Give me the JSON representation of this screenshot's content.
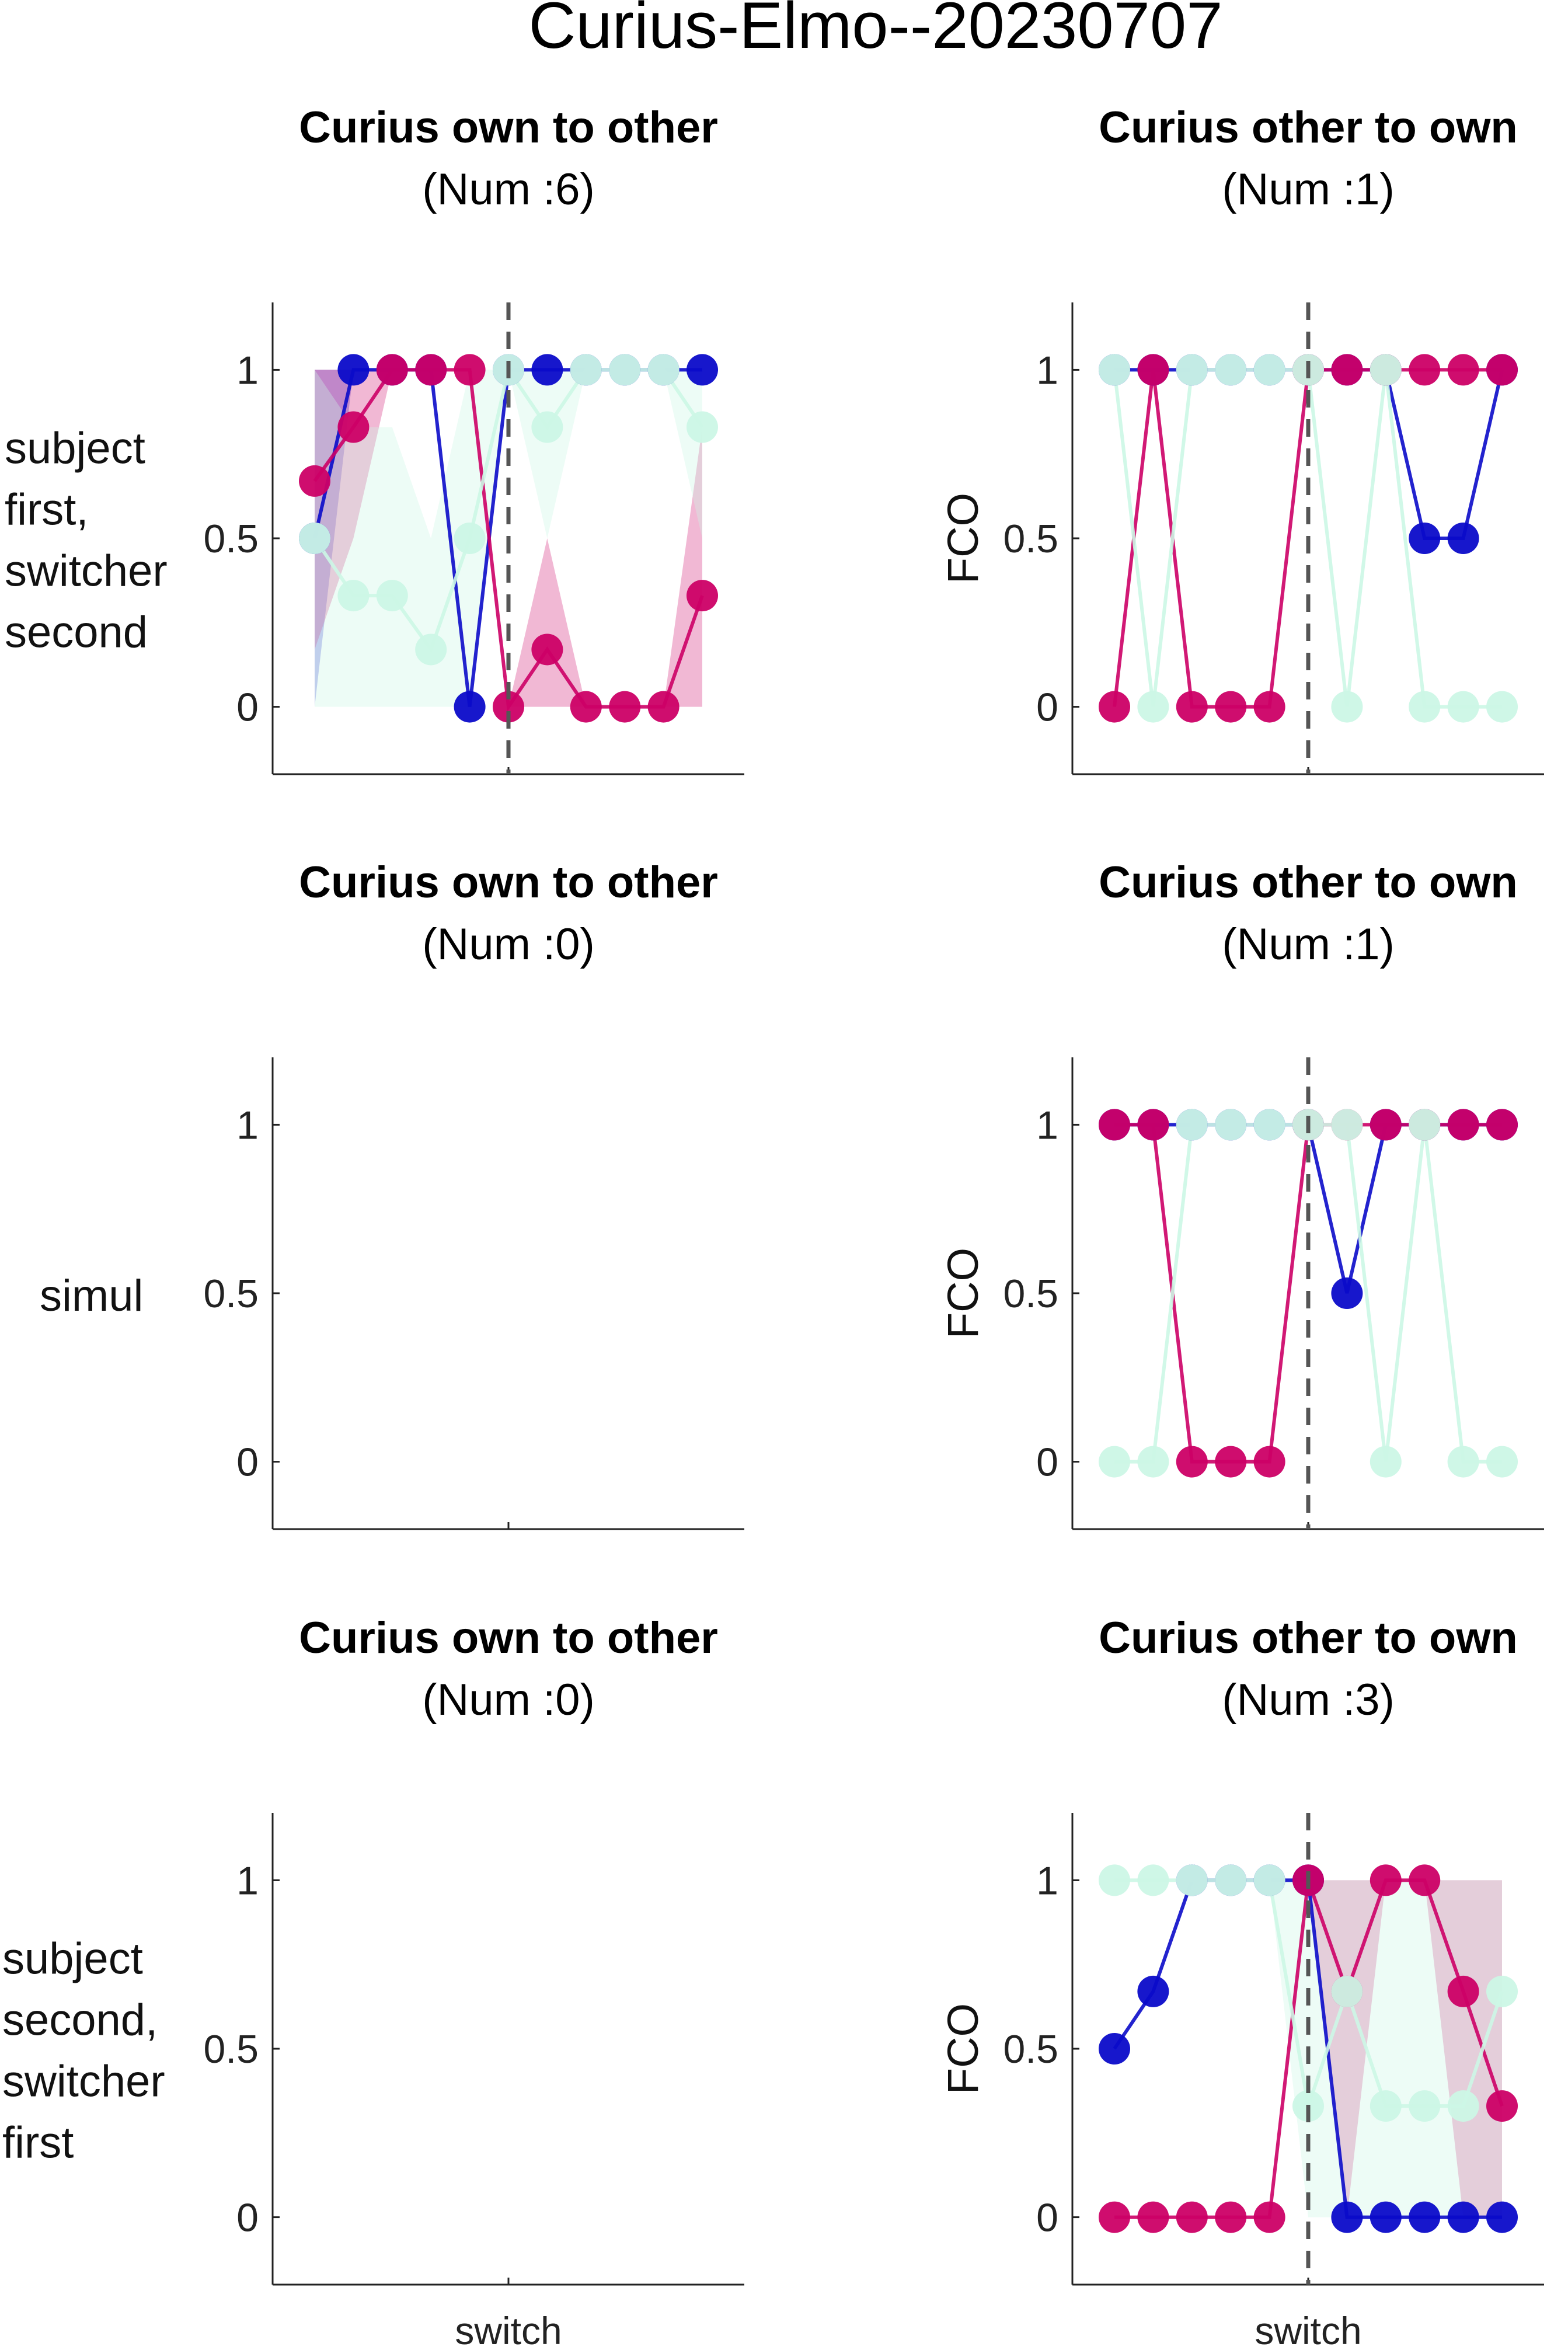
{
  "figure_title": "Curius-Elmo--20230707",
  "row_labels": [
    [
      "subject",
      "first,",
      "switcher",
      "second"
    ],
    [
      "simul"
    ],
    [
      "subject",
      "second,",
      "switcher",
      "first"
    ]
  ],
  "colors": {
    "blue": "#0b0bc9",
    "magenta": "#cc0066",
    "mint": "#ccf7e6",
    "dashed": "#555555",
    "axis": "#222222"
  },
  "chart_data": [
    {
      "type": "line",
      "title": "Curius own to other",
      "subtitle": "(Num :6)",
      "ylabel": "",
      "xlabel": "",
      "x_tick_label": "switch",
      "yticks": [
        "0",
        "0.5",
        "1"
      ],
      "ylim": [
        -0.2,
        1.2
      ],
      "x": [
        -5,
        -4,
        -3,
        -2,
        -1,
        0,
        1,
        2,
        3,
        4,
        5
      ],
      "switch_at": 0,
      "series": [
        {
          "color": "blue",
          "values": [
            0.5,
            1,
            1,
            1,
            0,
            1,
            1,
            1,
            1,
            1,
            1
          ],
          "band_low": [
            0,
            1,
            1,
            1,
            0,
            1,
            1,
            1,
            1,
            1,
            1
          ],
          "band_high": [
            1,
            1,
            1,
            1,
            0,
            1,
            1,
            1,
            1,
            1,
            1
          ]
        },
        {
          "color": "magenta",
          "values": [
            0.67,
            0.83,
            1,
            1,
            1,
            0,
            0.17,
            0,
            0,
            0,
            0.33
          ],
          "band_low": [
            0.17,
            0.5,
            1,
            1,
            1,
            0,
            0,
            0,
            0,
            0,
            0
          ],
          "band_high": [
            1,
            1,
            1,
            1,
            1,
            0,
            0.5,
            0,
            0,
            0,
            0.83
          ]
        },
        {
          "color": "mint",
          "values": [
            0.5,
            0.33,
            0.33,
            0.17,
            0.5,
            1,
            0.83,
            1,
            1,
            1,
            0.83
          ],
          "band_low": [
            0,
            0,
            0,
            0,
            0,
            1,
            0.5,
            1,
            1,
            1,
            0.5
          ],
          "band_high": [
            1,
            0.83,
            0.83,
            0.5,
            1,
            1,
            1,
            1,
            1,
            1,
            1
          ]
        }
      ]
    },
    {
      "type": "line",
      "title": "Curius other to own",
      "subtitle": "(Num :1)",
      "ylabel": "FCO",
      "xlabel": "",
      "x_tick_label": "switch",
      "yticks": [
        "0",
        "0.5",
        "1"
      ],
      "ylim": [
        -0.2,
        1.2
      ],
      "x": [
        -5,
        -4,
        -3,
        -2,
        -1,
        0,
        1,
        2,
        3,
        4,
        5
      ],
      "switch_at": 0,
      "series": [
        {
          "color": "blue",
          "values": [
            1,
            1,
            1,
            1,
            1,
            1,
            1,
            1,
            0.5,
            0.5,
            1
          ]
        },
        {
          "color": "magenta",
          "values": [
            0,
            1,
            0,
            0,
            0,
            1,
            1,
            1,
            1,
            1,
            1
          ]
        },
        {
          "color": "mint",
          "values": [
            1,
            0,
            1,
            1,
            1,
            1,
            0,
            1,
            0,
            0,
            0
          ]
        }
      ]
    },
    {
      "type": "line",
      "title": "Curius own to other",
      "subtitle": "(Num :0)",
      "ylabel": "",
      "xlabel": "",
      "x_tick_label": "switch",
      "yticks": [
        "0",
        "0.5",
        "1"
      ],
      "ylim": [
        -0.2,
        1.2
      ],
      "x": [
        -5,
        -4,
        -3,
        -2,
        -1,
        0,
        1,
        2,
        3,
        4,
        5
      ],
      "switch_at": 0,
      "series": []
    },
    {
      "type": "line",
      "title": "Curius other to own",
      "subtitle": "(Num :1)",
      "ylabel": "FCO",
      "xlabel": "",
      "x_tick_label": "switch",
      "yticks": [
        "0",
        "0.5",
        "1"
      ],
      "ylim": [
        -0.2,
        1.2
      ],
      "x": [
        -5,
        -4,
        -3,
        -2,
        -1,
        0,
        1,
        2,
        3,
        4,
        5
      ],
      "switch_at": 0,
      "series": [
        {
          "color": "blue",
          "values": [
            1,
            1,
            1,
            1,
            1,
            1,
            0.5,
            1,
            1,
            1,
            1
          ]
        },
        {
          "color": "magenta",
          "values": [
            1,
            1,
            0,
            0,
            0,
            1,
            1,
            1,
            1,
            1,
            1
          ]
        },
        {
          "color": "mint",
          "values": [
            0,
            0,
            1,
            1,
            1,
            1,
            1,
            0,
            1,
            0,
            0
          ]
        }
      ]
    },
    {
      "type": "line",
      "title": "Curius own to other",
      "subtitle": "(Num :0)",
      "ylabel": "",
      "xlabel": "",
      "x_tick_label": "switch",
      "yticks": [
        "0",
        "0.5",
        "1"
      ],
      "ylim": [
        -0.2,
        1.2
      ],
      "x": [
        -5,
        -4,
        -3,
        -2,
        -1,
        0,
        1,
        2,
        3,
        4,
        5
      ],
      "switch_at": 0,
      "series": []
    },
    {
      "type": "line",
      "title": "Curius other to own",
      "subtitle": "(Num :3)",
      "ylabel": "FCO",
      "xlabel": "",
      "x_tick_label": "switch",
      "yticks": [
        "0",
        "0.5",
        "1"
      ],
      "ylim": [
        -0.2,
        1.2
      ],
      "x": [
        -5,
        -4,
        -3,
        -2,
        -1,
        0,
        1,
        2,
        3,
        4,
        5
      ],
      "switch_at": 0,
      "series": [
        {
          "color": "blue",
          "values": [
            0.5,
            0.67,
            1,
            1,
            1,
            1,
            0,
            0,
            0,
            0,
            0
          ],
          "band_low": [
            0.5,
            0.67,
            1,
            1,
            1,
            1,
            0,
            0,
            0,
            0,
            0
          ],
          "band_high": [
            0.5,
            0.67,
            1,
            1,
            1,
            1,
            0,
            0,
            0,
            0,
            0
          ]
        },
        {
          "color": "magenta",
          "values": [
            0,
            0,
            0,
            0,
            0,
            1,
            0.67,
            1,
            1,
            0.67,
            0.33
          ],
          "band_low": [
            0,
            0,
            0,
            0,
            0,
            1,
            0,
            1,
            1,
            0,
            0
          ],
          "band_high": [
            0,
            0,
            0,
            0,
            0,
            1,
            1,
            1,
            1,
            1,
            1
          ]
        },
        {
          "color": "mint",
          "values": [
            1,
            1,
            1,
            1,
            1,
            0.33,
            0.67,
            0.33,
            0.33,
            0.33,
            0.67
          ],
          "band_low": [
            1,
            1,
            1,
            1,
            1,
            0,
            0,
            0,
            0,
            0,
            0
          ],
          "band_high": [
            1,
            1,
            1,
            1,
            1,
            1,
            1,
            1,
            1,
            1,
            1
          ]
        }
      ]
    }
  ]
}
